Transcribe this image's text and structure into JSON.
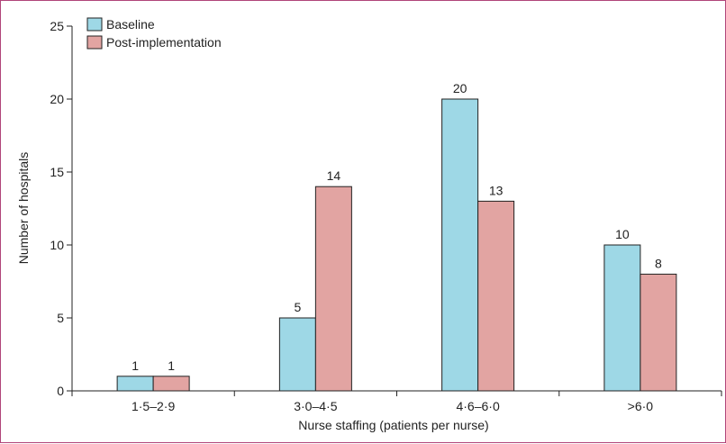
{
  "colors": {
    "frame": "#b0457a",
    "axis": "#222222"
  },
  "chart_data": {
    "type": "bar",
    "title": "",
    "xlabel": "Nurse staffing (patients per nurse)",
    "ylabel": "Number of hospitals",
    "categories": [
      "1·5–2·9",
      "3·0–4·5",
      "4·6–6·0",
      ">6·0"
    ],
    "series": [
      {
        "name": "Baseline",
        "values": [
          1,
          5,
          20,
          10
        ],
        "color": "#9ed8e6"
      },
      {
        "name": "Post-implementation",
        "values": [
          1,
          14,
          13,
          8
        ],
        "color": "#e2a4a2"
      }
    ],
    "ylim": [
      0,
      25
    ],
    "yticks": [
      0,
      5,
      10,
      15,
      20,
      25
    ],
    "grid": false,
    "legend_position": "top-left"
  }
}
